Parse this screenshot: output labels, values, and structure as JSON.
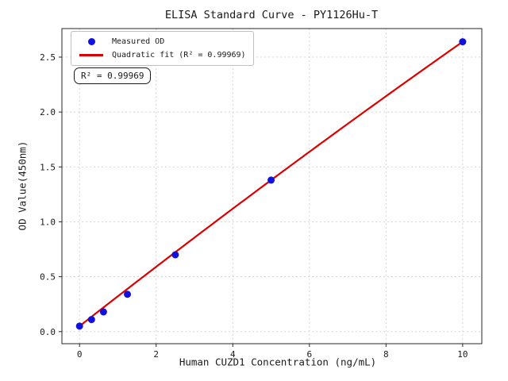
{
  "chart_data": {
    "type": "scatter",
    "title": "ELISA Standard Curve - PY1126Hu-T",
    "xlabel": "Human CUZD1 Concentration (ng/mL)",
    "ylabel": "OD Value(450nm)",
    "xlim": [
      -0.46,
      10.5
    ],
    "ylim": [
      -0.11,
      2.76
    ],
    "xticks": {
      "values": [
        0,
        2,
        4,
        6,
        8,
        10
      ],
      "labels": [
        "0",
        "2",
        "4",
        "6",
        "8",
        "10"
      ]
    },
    "yticks": {
      "values": [
        0.0,
        0.5,
        1.0,
        1.5,
        2.0,
        2.5
      ],
      "labels": [
        "0.0",
        "0.5",
        "1.0",
        "1.5",
        "2.0",
        "2.5"
      ]
    },
    "grid": true,
    "legend_position": "upper-left",
    "series": [
      {
        "name": "Measured OD",
        "type": "scatter",
        "marker": "circle",
        "color": "#1111dd",
        "x": [
          0,
          0.3125,
          0.625,
          1.25,
          2.5,
          5,
          10
        ],
        "y": [
          0.05,
          0.11,
          0.18,
          0.34,
          0.7,
          1.38,
          2.64
        ]
      },
      {
        "name": "Quadratic fit (R² = 0.99969)",
        "type": "line",
        "color": "#dd0000",
        "fit": {
          "kind": "quadratic",
          "a": -0.0014,
          "b": 0.273,
          "c": 0.05,
          "x_start": 0,
          "x_end": 10
        }
      }
    ],
    "annotation": "R² = 0.99969",
    "r_squared": 0.99969
  },
  "style": {
    "frame_color": "#262626",
    "grid_color": "#d2d2d2",
    "text_color": "#1a1a1a",
    "background": "#ffffff"
  }
}
